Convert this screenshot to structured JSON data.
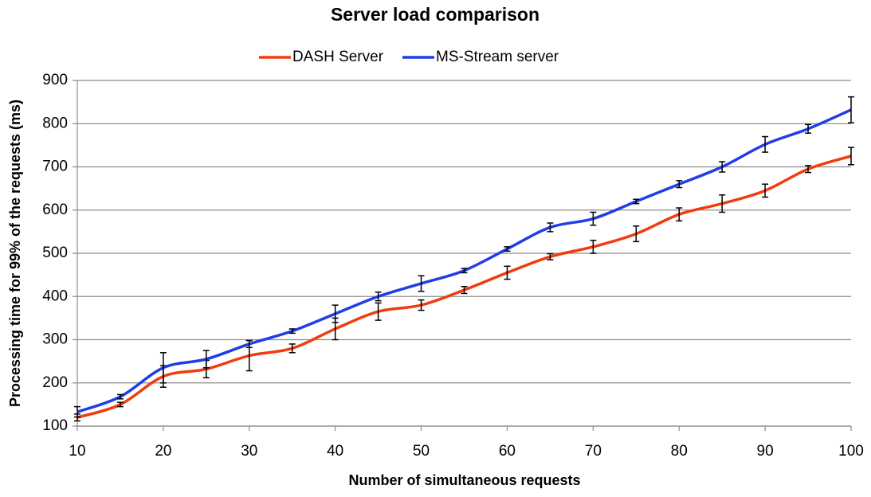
{
  "chart_data": {
    "type": "line",
    "title": "Server load comparison",
    "x_label": "Number of simultaneous requests",
    "y_label": "Processing time for 99% of the requests (ms)",
    "x": [
      10,
      15,
      20,
      25,
      30,
      35,
      40,
      45,
      50,
      55,
      60,
      65,
      70,
      75,
      80,
      85,
      90,
      95,
      100
    ],
    "series": [
      {
        "name": "DASH Server",
        "color": "#f03c0f",
        "values": [
          120,
          150,
          215,
          232,
          263,
          280,
          325,
          365,
          380,
          415,
          455,
          492,
          515,
          545,
          590,
          615,
          645,
          695,
          725
        ],
        "errors": [
          8,
          5,
          25,
          20,
          35,
          10,
          25,
          20,
          12,
          8,
          15,
          7,
          15,
          18,
          15,
          20,
          15,
          8,
          20
        ]
      },
      {
        "name": "MS-Stream server",
        "color": "#1f3ee6",
        "values": [
          133,
          168,
          235,
          255,
          290,
          320,
          360,
          400,
          430,
          460,
          510,
          560,
          580,
          620,
          660,
          700,
          752,
          788,
          832
        ],
        "errors": [
          12,
          5,
          35,
          20,
          8,
          5,
          20,
          10,
          18,
          5,
          5,
          10,
          15,
          5,
          8,
          12,
          18,
          10,
          30
        ]
      }
    ],
    "xlim": [
      10,
      100
    ],
    "xticks": [
      10,
      20,
      30,
      40,
      50,
      60,
      70,
      80,
      90,
      100
    ],
    "ylim": [
      100,
      900
    ],
    "yticks": [
      100,
      200,
      300,
      400,
      500,
      600,
      700,
      800,
      900
    ],
    "grid": true,
    "legend": "top"
  }
}
